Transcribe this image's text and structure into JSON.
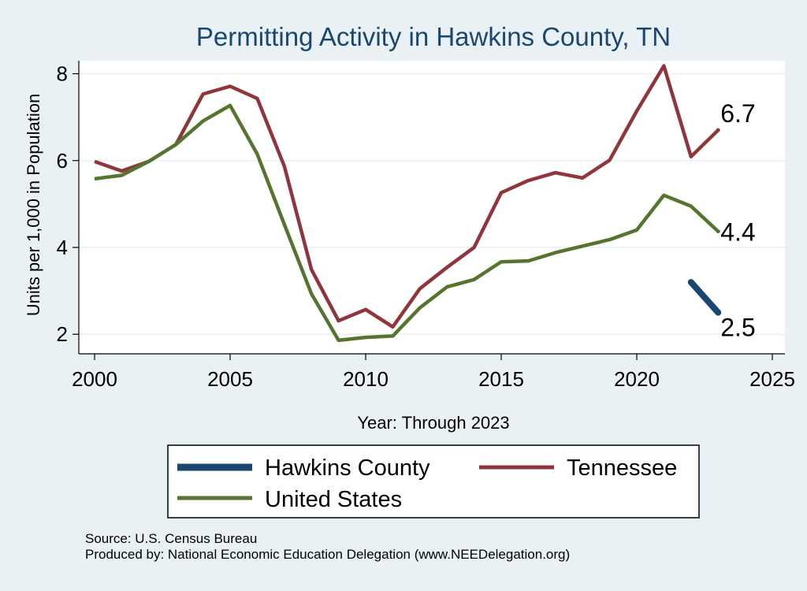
{
  "chart_data": {
    "type": "line",
    "title": "Permitting Activity in Hawkins County, TN",
    "xlabel": "Year: Through 2023",
    "ylabel": "Units per 1,000 in Population",
    "xlim": [
      2000,
      2025
    ],
    "ylim": [
      1.55,
      8.3
    ],
    "xticks": [
      2000,
      2005,
      2010,
      2015,
      2020,
      2025
    ],
    "yticks": [
      2,
      4,
      6,
      8
    ],
    "grid": true,
    "legend_position": "bottom",
    "series": [
      {
        "name": "Hawkins County",
        "color": "#1a476f",
        "x": [
          2022,
          2023
        ],
        "values": [
          3.2,
          2.5
        ],
        "end_label": "2.5"
      },
      {
        "name": "Tennessee",
        "color": "#90353b",
        "x": [
          2000,
          2001,
          2002,
          2003,
          2004,
          2005,
          2006,
          2007,
          2008,
          2009,
          2010,
          2011,
          2012,
          2013,
          2014,
          2015,
          2016,
          2017,
          2018,
          2019,
          2020,
          2021,
          2022,
          2023
        ],
        "values": [
          5.98,
          5.76,
          5.98,
          6.37,
          7.53,
          7.71,
          7.43,
          5.87,
          3.49,
          2.31,
          2.57,
          2.17,
          3.05,
          3.54,
          4.0,
          5.26,
          5.54,
          5.72,
          5.6,
          6.01,
          7.14,
          8.18,
          6.09,
          6.7
        ],
        "end_label": "6.7"
      },
      {
        "name": "United States",
        "color": "#55752f",
        "x": [
          2000,
          2001,
          2002,
          2003,
          2004,
          2005,
          2006,
          2007,
          2008,
          2009,
          2010,
          2011,
          2012,
          2013,
          2014,
          2015,
          2016,
          2017,
          2018,
          2019,
          2020,
          2021,
          2022,
          2023
        ],
        "values": [
          5.58,
          5.66,
          5.98,
          6.37,
          6.91,
          7.27,
          6.15,
          4.53,
          2.93,
          1.86,
          1.93,
          1.96,
          2.61,
          3.09,
          3.26,
          3.67,
          3.69,
          3.88,
          4.03,
          4.18,
          4.4,
          5.2,
          4.95,
          4.37
        ],
        "end_label": "4.4"
      }
    ],
    "legend": [
      "Hawkins County",
      "Tennessee",
      "United States"
    ]
  },
  "footer": {
    "source": "Source: U.S. Census Bureau",
    "produced_by": "Produced by: National Economic Education Delegation (www.NEEDelegation.org)"
  },
  "colors": {
    "background": "#eaf1f4",
    "plot_background": "#ffffff",
    "title": "#1a476f"
  }
}
